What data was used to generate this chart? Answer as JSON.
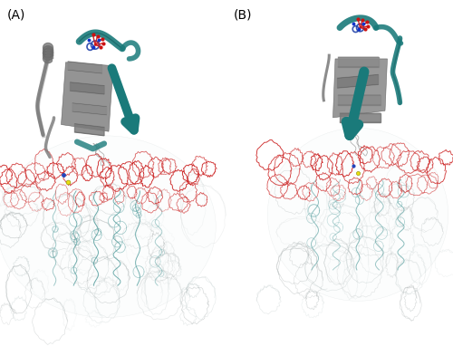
{
  "figure_width": 5.0,
  "figure_height": 3.82,
  "dpi": 100,
  "background_color": "#ffffff",
  "label_A": "(A)",
  "label_B": "(B)",
  "label_fontsize": 10,
  "teal_color": "#1a7a7a",
  "teal_light": "#2a9090",
  "gray_protein": "#888888",
  "gray_light": "#aaaaaa",
  "gray_ribbon": "#787878",
  "red_color": "#cc2222",
  "red_light": "#dd4444",
  "white": "#ffffff",
  "loop_gray": "#b0b0b0",
  "loop_teal": "#4a9898"
}
